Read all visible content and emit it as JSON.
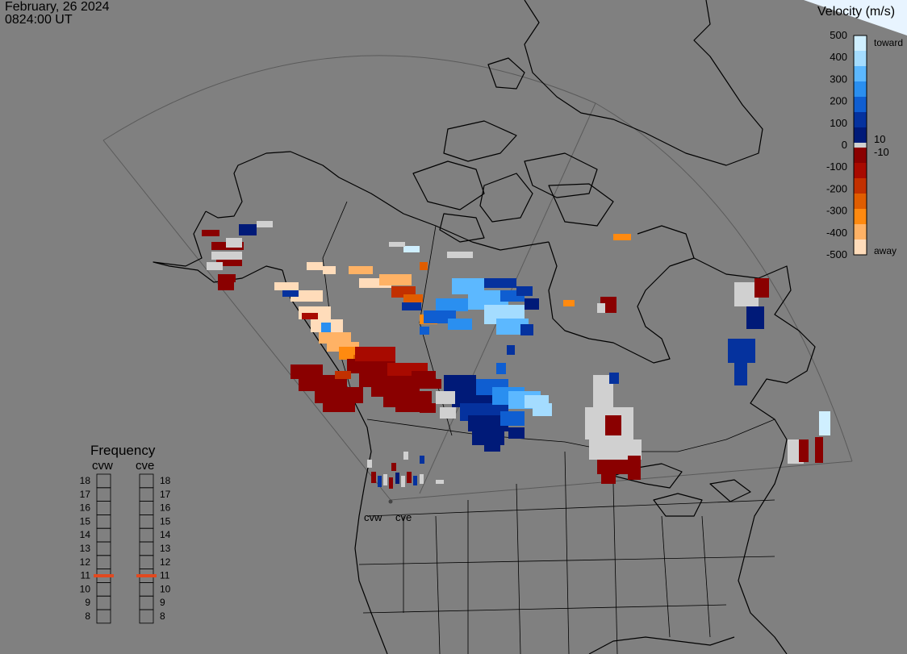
{
  "header": {
    "date": "February, 26 2024",
    "time": "0824:00 UT"
  },
  "velocity_legend": {
    "title": "Velocity (m/s)",
    "toward_label": "toward",
    "away_label": "away",
    "ticks": [
      "500",
      "400",
      "300",
      "200",
      "100",
      "0",
      "-100",
      "-200",
      "-300",
      "-400",
      "-500"
    ],
    "inner_ticks": [
      "10",
      "-10"
    ],
    "colors": [
      "#cfefff",
      "#a4dcff",
      "#5cb8ff",
      "#2a8ff0",
      "#0f5ed1",
      "#05329e",
      "#001a78",
      "#8a0000",
      "#a80a00",
      "#c23000",
      "#e05d00",
      "#ff8a10",
      "#ffb265",
      "#ffdcba"
    ],
    "zero_color": "#d0d0d0"
  },
  "frequency_panel": {
    "title": "Frequency",
    "radars": [
      "cvw",
      "cve"
    ],
    "scale": [
      "18",
      "17",
      "16",
      "15",
      "14",
      "13",
      "12",
      "11",
      "10",
      "9",
      "8"
    ],
    "selected": {
      "cvw": 11,
      "cve": 11
    },
    "marker_color": "#e2491f"
  },
  "radar_sites": [
    "cvw",
    "cve"
  ],
  "map_colors": {
    "background": "#808080",
    "coastline": "#000000",
    "fov_line": "#5a5a5a",
    "ground_scatter": "#d0d0d0"
  }
}
